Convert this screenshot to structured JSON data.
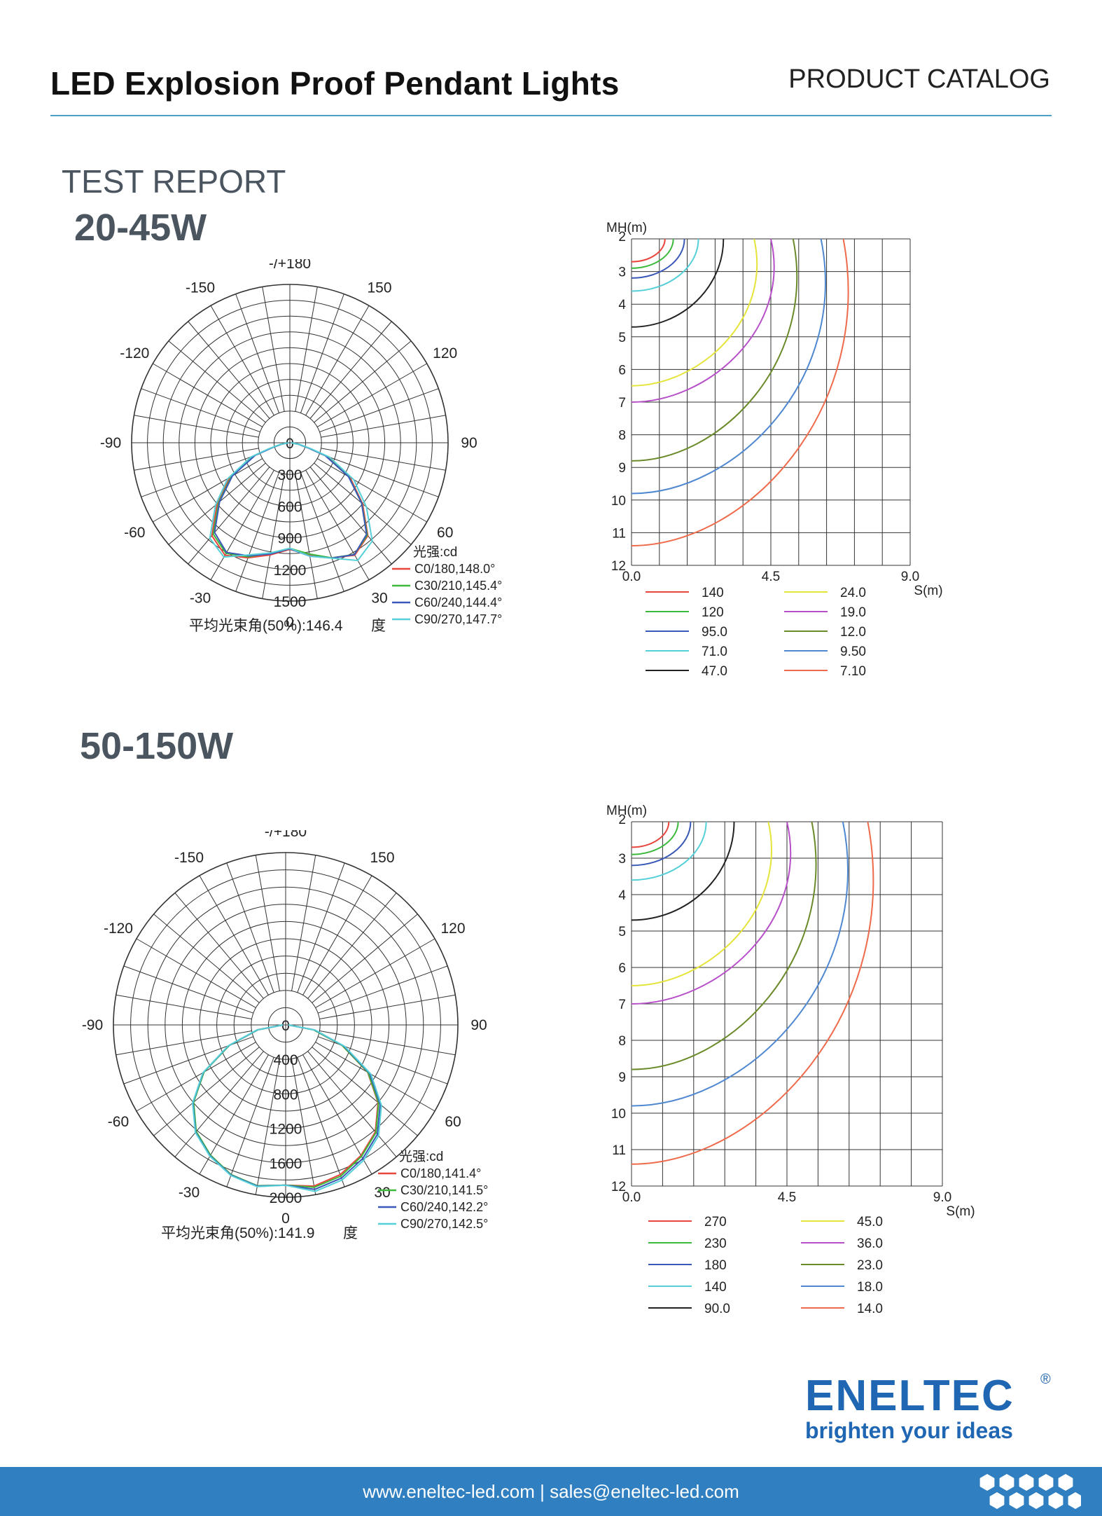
{
  "header": {
    "title": "LED Explosion Proof Pendant Lights",
    "subtitle": "PRODUCT CATALOG"
  },
  "section_title": "TEST REPORT",
  "footer": {
    "text": "www.eneltec-led.com | sales@eneltec-led.com"
  },
  "logo": {
    "word": "ENELTEC",
    "registered": "®",
    "tagline": "brighten your ideas"
  },
  "colors": {
    "accent": "#4aa3c6",
    "footer": "#2f7fc1",
    "brand": "#1f66b3",
    "c0": "#e8453c",
    "c30": "#3cb93c",
    "c60": "#3a58b8",
    "c90": "#55d0d8",
    "iso": [
      "#e8453c",
      "#3cb93c",
      "#3a58b8",
      "#55d0d8",
      "#222222",
      "#e4e43a",
      "#b64fc8",
      "#6b8a2a",
      "#4f88d0",
      "#ee6a4a"
    ]
  },
  "chart_data": [
    {
      "type": "polar-line",
      "product": "20-45W",
      "angle_labels": [
        "-/+180",
        "150",
        "120",
        "90",
        "60",
        "30",
        "0",
        "-30",
        "-60",
        "-90",
        "-120",
        "-150"
      ],
      "radial_labels": [
        "0",
        "300",
        "600",
        "900",
        "1200",
        "1500"
      ],
      "rmax": 1500,
      "legend_title": "光强:cd",
      "series": [
        {
          "name": "C0/180,148.0°",
          "angles_deg": [
            0,
            10,
            20,
            30,
            40,
            50,
            60,
            70,
            74,
            80,
            90
          ],
          "values": [
            1010,
            1080,
            1160,
            1230,
            1150,
            900,
            660,
            380,
            200,
            90,
            10
          ]
        },
        {
          "name": "C30/210,145.4°",
          "angles_deg": [
            0,
            10,
            20,
            30,
            40,
            50,
            60,
            70,
            74,
            80,
            90
          ],
          "values": [
            1000,
            1060,
            1150,
            1210,
            1130,
            880,
            640,
            360,
            190,
            85,
            10
          ]
        },
        {
          "name": "C60/240,144.4°",
          "angles_deg": [
            0,
            10,
            20,
            30,
            40,
            50,
            60,
            70,
            74,
            80,
            90
          ],
          "values": [
            1005,
            1070,
            1140,
            1200,
            1110,
            870,
            630,
            350,
            180,
            80,
            10
          ]
        },
        {
          "name": "C90/270,147.7°",
          "angles_deg": [
            0,
            10,
            20,
            30,
            40,
            50,
            60,
            70,
            74,
            80,
            90
          ],
          "values": [
            1000,
            1060,
            1130,
            1250,
            1180,
            920,
            680,
            390,
            210,
            95,
            10
          ]
        }
      ],
      "beam_angle_label": "平均光束角(50%):146.4",
      "beam_angle_unit": "度"
    },
    {
      "type": "isolux-contour",
      "product": "20-45W",
      "ylabel": "MH(m)",
      "xlabel": "S(m)",
      "x_ticks": [
        "0.0",
        "4.5",
        "9.0"
      ],
      "y_ticks": [
        "2",
        "3",
        "4",
        "5",
        "6",
        "7",
        "8",
        "9",
        "10",
        "11",
        "12"
      ],
      "xlim": [
        0,
        9
      ],
      "ylim": [
        2,
        12
      ],
      "levels": [
        "140",
        "120",
        "95.0",
        "71.0",
        "47.0",
        "24.0",
        "19.0",
        "12.0",
        "9.50",
        "7.10"
      ]
    },
    {
      "type": "polar-line",
      "product": "50-150W",
      "angle_labels": [
        "-/+180",
        "150",
        "120",
        "90",
        "60",
        "30",
        "0",
        "-30",
        "-60",
        "-90",
        "-120",
        "-150"
      ],
      "radial_labels": [
        "0",
        "400",
        "800",
        "1200",
        "1600",
        "2000"
      ],
      "rmax": 2000,
      "legend_title": "光强:cd",
      "series": [
        {
          "name": "C0/180,141.4°",
          "angles_deg": [
            0,
            10,
            20,
            30,
            40,
            50,
            60,
            70,
            80,
            90
          ],
          "values": [
            1860,
            1900,
            1850,
            1750,
            1620,
            1400,
            1100,
            700,
            330,
            30
          ]
        },
        {
          "name": "C30/210,141.5°",
          "angles_deg": [
            0,
            10,
            20,
            30,
            40,
            50,
            60,
            70,
            80,
            90
          ],
          "values": [
            1860,
            1895,
            1850,
            1745,
            1615,
            1395,
            1095,
            695,
            325,
            30
          ]
        },
        {
          "name": "C60/240,142.2°",
          "angles_deg": [
            0,
            10,
            20,
            30,
            40,
            50,
            60,
            70,
            80,
            90
          ],
          "values": [
            1860,
            1900,
            1855,
            1755,
            1625,
            1405,
            1105,
            705,
            335,
            30
          ]
        },
        {
          "name": "C90/270,142.5°",
          "angles_deg": [
            0,
            10,
            20,
            30,
            40,
            50,
            60,
            70,
            80,
            90
          ],
          "values": [
            1860,
            1905,
            1860,
            1760,
            1630,
            1410,
            1110,
            710,
            340,
            30
          ]
        }
      ],
      "beam_angle_label": "平均光束角(50%):141.9",
      "beam_angle_unit": "度"
    },
    {
      "type": "isolux-contour",
      "product": "50-150W",
      "ylabel": "MH(m)",
      "xlabel": "S(m)",
      "x_ticks": [
        "0.0",
        "4.5",
        "9.0"
      ],
      "y_ticks": [
        "2",
        "3",
        "4",
        "5",
        "6",
        "7",
        "8",
        "9",
        "10",
        "11",
        "12"
      ],
      "xlim": [
        0,
        9
      ],
      "ylim": [
        2,
        12
      ],
      "levels": [
        "270",
        "230",
        "180",
        "140",
        "90.0",
        "45.0",
        "36.0",
        "23.0",
        "18.0",
        "14.0"
      ]
    }
  ]
}
